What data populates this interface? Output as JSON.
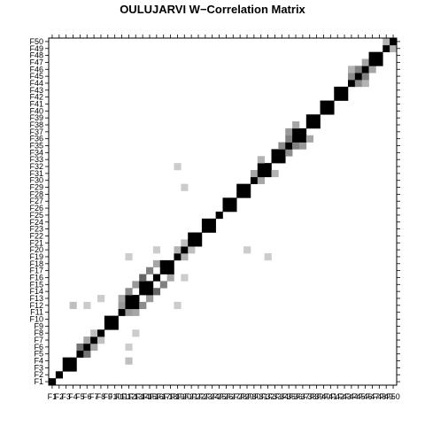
{
  "chart_data": {
    "type": "heatmap",
    "title": "OULUJARVI W−Correlation Matrix",
    "xlabel": "",
    "ylabel": "",
    "labels": [
      "F1",
      "F2",
      "F3",
      "F4",
      "F5",
      "F6",
      "F7",
      "F8",
      "F9",
      "F10",
      "F11",
      "F12",
      "F13",
      "F14",
      "F15",
      "F16",
      "F17",
      "F18",
      "F19",
      "F20",
      "F21",
      "F22",
      "F23",
      "F24",
      "F25",
      "F26",
      "F27",
      "F28",
      "F29",
      "F30",
      "F31",
      "F32",
      "F33",
      "F34",
      "F35",
      "F36",
      "F37",
      "F38",
      "F39",
      "F40",
      "F41",
      "F42",
      "F43",
      "F44",
      "F45",
      "F46",
      "F47",
      "F48",
      "F49",
      "F50"
    ],
    "value_range": [
      0,
      1
    ],
    "color_scale": {
      "low": "#ffffff",
      "high": "#000000"
    },
    "blocks": [
      [
        3,
        4
      ],
      [
        9,
        10
      ],
      [
        12,
        13
      ],
      [
        14,
        15
      ],
      [
        17,
        18
      ],
      [
        21,
        22
      ],
      [
        23,
        24
      ],
      [
        26,
        27
      ],
      [
        28,
        29
      ],
      [
        31,
        32
      ],
      [
        33,
        34
      ],
      [
        36,
        37
      ],
      [
        38,
        39
      ],
      [
        40,
        41
      ],
      [
        42,
        43
      ],
      [
        47,
        48
      ]
    ],
    "strong_pairs": [
      {
        "f1": "F5",
        "f2": "F6",
        "w": 0.55
      },
      {
        "f1": "F6",
        "f2": "F7",
        "w": 0.35
      },
      {
        "f1": "F7",
        "f2": "F8",
        "w": 0.25
      },
      {
        "f1": "F11",
        "f2": "F12",
        "w": 0.4
      },
      {
        "f1": "F11",
        "f2": "F13",
        "w": 0.35
      },
      {
        "f1": "F12",
        "f2": "F14",
        "w": 0.45
      },
      {
        "f1": "F13",
        "f2": "F15",
        "w": 0.4
      },
      {
        "f1": "F14",
        "f2": "F16",
        "w": 0.6
      },
      {
        "f1": "F15",
        "f2": "F17",
        "w": 0.5
      },
      {
        "f1": "F16",
        "f2": "F18",
        "w": 0.35
      },
      {
        "f1": "F19",
        "f2": "F20",
        "w": 0.3
      },
      {
        "f1": "F20",
        "f2": "F21",
        "w": 0.25
      },
      {
        "f1": "F30",
        "f2": "F31",
        "w": 0.35
      },
      {
        "f1": "F31",
        "f2": "F33",
        "w": 0.3
      },
      {
        "f1": "F34",
        "f2": "F35",
        "w": 0.45
      },
      {
        "f1": "F35",
        "f2": "F36",
        "w": 0.5
      },
      {
        "f1": "F35",
        "f2": "F37",
        "w": 0.4
      },
      {
        "f1": "F36",
        "f2": "F38",
        "w": 0.35
      },
      {
        "f1": "F44",
        "f2": "F45",
        "w": 0.45
      },
      {
        "f1": "F45",
        "f2": "F46",
        "w": 0.5
      },
      {
        "f1": "F46",
        "f2": "F47",
        "w": 0.35
      },
      {
        "f1": "F44",
        "f2": "F46",
        "w": 0.3
      },
      {
        "f1": "F49",
        "f2": "F50",
        "w": 0.3
      },
      {
        "f1": "F4",
        "f2": "F12",
        "w": 0.25
      },
      {
        "f1": "F6",
        "f2": "F12",
        "w": 0.2
      },
      {
        "f1": "F8",
        "f2": "F13",
        "w": 0.2
      },
      {
        "f1": "F12",
        "f2": "F19",
        "w": 0.2
      },
      {
        "f1": "F16",
        "f2": "F20",
        "w": 0.2
      },
      {
        "f1": "F20",
        "f2": "F29",
        "w": 0.2
      },
      {
        "f1": "F19",
        "f2": "F32",
        "w": 0.2
      }
    ]
  }
}
